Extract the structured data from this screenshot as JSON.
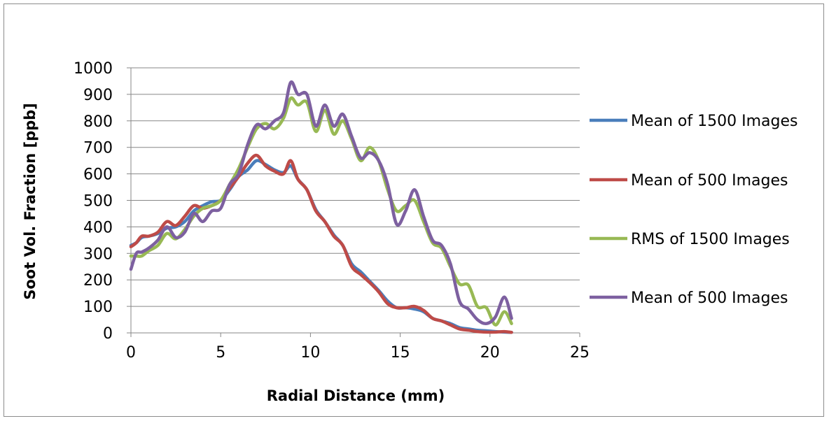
{
  "chart_data": {
    "type": "line",
    "title": "",
    "xlabel": "Radial Distance (mm)",
    "ylabel": "Soot Vol. Fraction [ppb]",
    "xlim": [
      0,
      25
    ],
    "ylim": [
      0,
      1000
    ],
    "xticks": [
      0,
      5,
      10,
      15,
      20,
      25
    ],
    "yticks": [
      0,
      100,
      200,
      300,
      400,
      500,
      600,
      700,
      800,
      900,
      1000
    ],
    "grid": "horizontal",
    "legend_position": "right",
    "series": [
      {
        "name": "Mean of 1500 Images",
        "color": "#4a7ebb",
        "x": [
          0,
          0.3,
          0.6,
          1.0,
          1.5,
          2.0,
          2.5,
          3.0,
          3.5,
          4.0,
          4.5,
          5.0,
          5.5,
          6.0,
          6.5,
          7.0,
          7.5,
          8.0,
          8.5,
          8.9,
          9.3,
          9.8,
          10.3,
          10.8,
          11.3,
          11.8,
          12.3,
          12.8,
          13.3,
          13.8,
          14.3,
          14.8,
          15.3,
          15.8,
          16.3,
          16.8,
          17.3,
          17.8,
          18.3,
          18.8,
          19.3,
          19.8,
          20.3,
          20.8,
          21.2
        ],
        "y": [
          330,
          340,
          360,
          365,
          375,
          395,
          400,
          420,
          460,
          480,
          495,
          500,
          540,
          590,
          615,
          650,
          635,
          615,
          605,
          630,
          580,
          540,
          465,
          420,
          370,
          330,
          260,
          230,
          195,
          160,
          120,
          95,
          95,
          90,
          80,
          55,
          45,
          35,
          20,
          15,
          10,
          8,
          5,
          3,
          2
        ]
      },
      {
        "name": "Mean of 500 Images",
        "color": "#be4b48",
        "x": [
          0,
          0.3,
          0.6,
          1.0,
          1.5,
          2.0,
          2.5,
          3.0,
          3.5,
          4.0,
          4.5,
          5.0,
          5.5,
          6.0,
          6.5,
          7.0,
          7.5,
          8.0,
          8.5,
          8.9,
          9.3,
          9.8,
          10.3,
          10.8,
          11.3,
          11.8,
          12.3,
          12.8,
          13.3,
          13.8,
          14.3,
          14.8,
          15.3,
          15.8,
          16.3,
          16.8,
          17.3,
          17.8,
          18.3,
          18.8,
          19.3,
          19.8,
          20.3,
          20.8,
          21.2
        ],
        "y": [
          325,
          340,
          365,
          365,
          380,
          420,
          405,
          440,
          480,
          470,
          480,
          500,
          545,
          590,
          640,
          670,
          630,
          610,
          600,
          650,
          580,
          540,
          460,
          420,
          365,
          330,
          250,
          220,
          190,
          155,
          110,
          95,
          95,
          100,
          85,
          55,
          45,
          30,
          15,
          10,
          5,
          3,
          3,
          5,
          2
        ]
      },
      {
        "name": "RMS of 1500 Images",
        "color": "#98b954",
        "x": [
          0,
          0.3,
          0.6,
          1.0,
          1.5,
          2.0,
          2.5,
          3.0,
          3.5,
          4.0,
          4.5,
          5.0,
          5.5,
          6.0,
          6.5,
          7.0,
          7.5,
          8.0,
          8.5,
          8.9,
          9.3,
          9.8,
          10.3,
          10.8,
          11.3,
          11.8,
          12.3,
          12.8,
          13.3,
          13.8,
          14.3,
          14.8,
          15.3,
          15.8,
          16.3,
          16.8,
          17.3,
          17.8,
          18.3,
          18.8,
          19.3,
          19.8,
          20.3,
          20.8,
          21.2
        ],
        "y": [
          290,
          290,
          290,
          310,
          330,
          375,
          355,
          390,
          440,
          470,
          480,
          500,
          560,
          620,
          700,
          770,
          790,
          770,
          810,
          885,
          860,
          870,
          760,
          840,
          750,
          800,
          730,
          650,
          700,
          650,
          540,
          460,
          480,
          500,
          420,
          340,
          320,
          250,
          185,
          180,
          100,
          95,
          30,
          80,
          35
        ]
      },
      {
        "name": "Mean of 500 Images",
        "color": "#7d60a0",
        "x": [
          0,
          0.3,
          0.6,
          1.0,
          1.5,
          2.0,
          2.5,
          3.0,
          3.5,
          4.0,
          4.5,
          5.0,
          5.5,
          6.0,
          6.5,
          7.0,
          7.5,
          8.0,
          8.5,
          8.9,
          9.3,
          9.8,
          10.3,
          10.8,
          11.3,
          11.8,
          12.3,
          12.8,
          13.3,
          13.8,
          14.3,
          14.8,
          15.3,
          15.8,
          16.3,
          16.8,
          17.3,
          17.8,
          18.3,
          18.8,
          19.3,
          19.8,
          20.3,
          20.8,
          21.2
        ],
        "y": [
          240,
          300,
          305,
          320,
          350,
          400,
          360,
          380,
          450,
          420,
          460,
          470,
          560,
          600,
          710,
          785,
          770,
          800,
          830,
          945,
          900,
          900,
          780,
          860,
          780,
          825,
          740,
          660,
          680,
          650,
          560,
          410,
          460,
          540,
          440,
          350,
          330,
          260,
          120,
          90,
          50,
          35,
          60,
          135,
          55
        ]
      }
    ]
  }
}
